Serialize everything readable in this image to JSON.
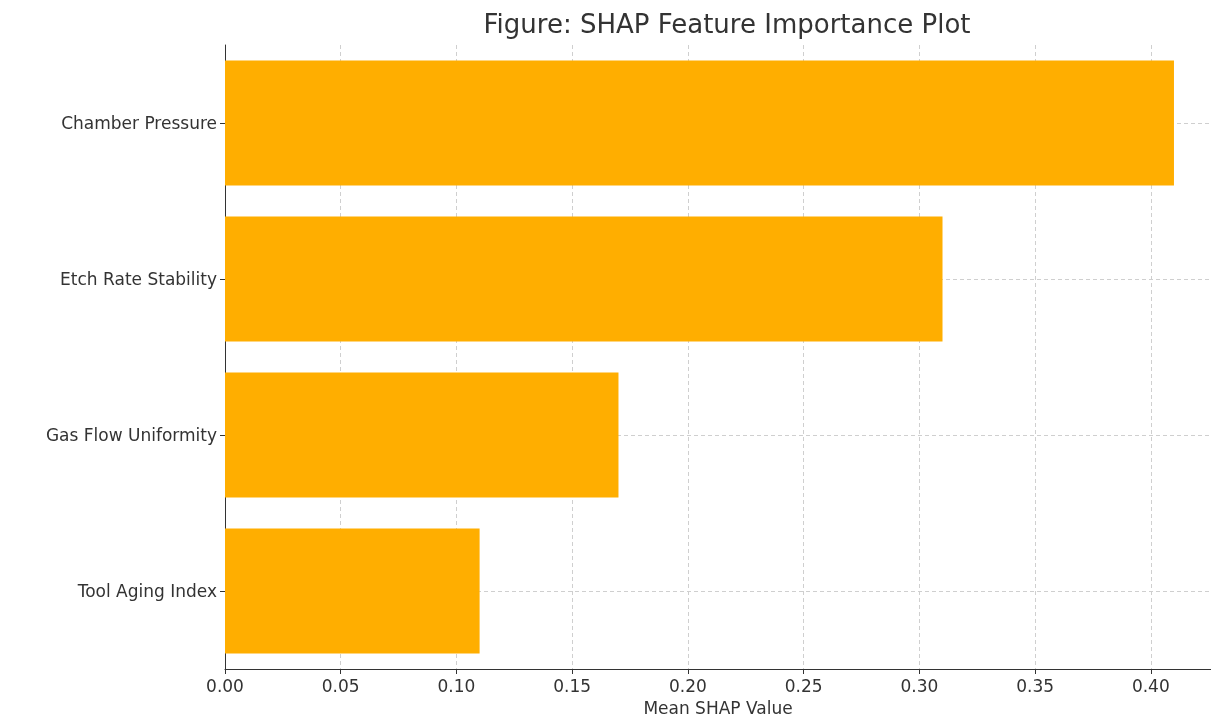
{
  "chart_data": {
    "type": "bar",
    "orientation": "horizontal",
    "title": "Figure: SHAP Feature Importance Plot",
    "xlabel": "Mean SHAP Value",
    "categories": [
      "Chamber Pressure",
      "Etch Rate Stability",
      "Gas Flow Uniformity",
      "Tool Aging Index"
    ],
    "values": [
      0.41,
      0.31,
      0.17,
      0.11
    ],
    "color": "#ffae00",
    "xlim": [
      0,
      0.426
    ],
    "xticks": [
      {
        "value": 0,
        "label": "0.00"
      },
      {
        "value": 0.05,
        "label": "0.05"
      },
      {
        "value": 0.1,
        "label": "0.10"
      },
      {
        "value": 0.15,
        "label": "0.15"
      },
      {
        "value": 0.2,
        "label": "0.20"
      },
      {
        "value": 0.25,
        "label": "0.25"
      },
      {
        "value": 0.3,
        "label": "0.30"
      },
      {
        "value": 0.35,
        "label": "0.35"
      },
      {
        "value": 0.4,
        "label": "0.40"
      }
    ],
    "grid": true
  }
}
